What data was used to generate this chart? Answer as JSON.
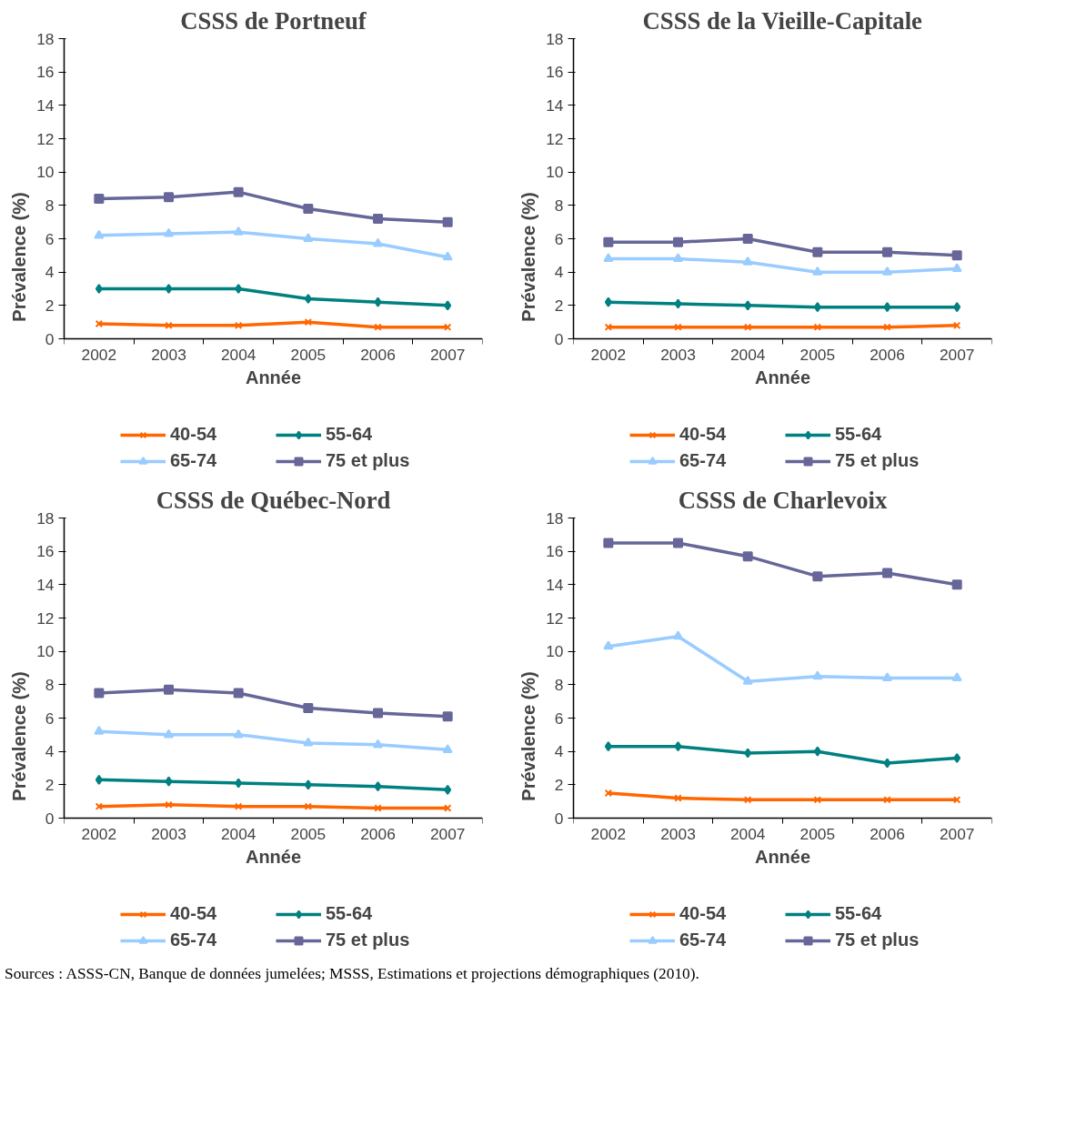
{
  "chart_data": [
    {
      "type": "line",
      "title": "CSSS de Portneuf",
      "xlabel": "Année",
      "ylabel": "Prévalence (%)",
      "categories": [
        "2002",
        "2003",
        "2004",
        "2005",
        "2006",
        "2007"
      ],
      "ylim": [
        0,
        18
      ],
      "yticks": [
        0,
        2,
        4,
        6,
        8,
        10,
        12,
        14,
        16,
        18
      ],
      "grid": false,
      "legend": "bottom",
      "series": [
        {
          "name": "40-54",
          "color": "#ff6600",
          "marker": "cross",
          "values": [
            0.9,
            0.8,
            0.8,
            1.0,
            0.7,
            0.7
          ]
        },
        {
          "name": "55-64",
          "color": "#008080",
          "marker": "diamond",
          "values": [
            3.0,
            3.0,
            3.0,
            2.4,
            2.2,
            2.0
          ]
        },
        {
          "name": "65-74",
          "color": "#99ccff",
          "marker": "triangle",
          "values": [
            6.2,
            6.3,
            6.4,
            6.0,
            5.7,
            4.9
          ]
        },
        {
          "name": "75 et plus",
          "color": "#666699",
          "marker": "square",
          "values": [
            8.4,
            8.5,
            8.8,
            7.8,
            7.2,
            7.0
          ]
        }
      ]
    },
    {
      "type": "line",
      "title": "CSSS de la Vieille-Capitale",
      "xlabel": "Année",
      "ylabel": "Prévalence (%)",
      "categories": [
        "2002",
        "2003",
        "2004",
        "2005",
        "2006",
        "2007"
      ],
      "ylim": [
        0,
        18
      ],
      "yticks": [
        0,
        2,
        4,
        6,
        8,
        10,
        12,
        14,
        16,
        18
      ],
      "grid": false,
      "legend": "bottom",
      "series": [
        {
          "name": "40-54",
          "color": "#ff6600",
          "marker": "cross",
          "values": [
            0.7,
            0.7,
            0.7,
            0.7,
            0.7,
            0.8
          ]
        },
        {
          "name": "55-64",
          "color": "#008080",
          "marker": "diamond",
          "values": [
            2.2,
            2.1,
            2.0,
            1.9,
            1.9,
            1.9
          ]
        },
        {
          "name": "65-74",
          "color": "#99ccff",
          "marker": "triangle",
          "values": [
            4.8,
            4.8,
            4.6,
            4.0,
            4.0,
            4.2
          ]
        },
        {
          "name": "75 et plus",
          "color": "#666699",
          "marker": "square",
          "values": [
            5.8,
            5.8,
            6.0,
            5.2,
            5.2,
            5.0
          ]
        }
      ]
    },
    {
      "type": "line",
      "title": "CSSS de Québec-Nord",
      "xlabel": "Année",
      "ylabel": "Prévalence (%)",
      "categories": [
        "2002",
        "2003",
        "2004",
        "2005",
        "2006",
        "2007"
      ],
      "ylim": [
        0,
        18
      ],
      "yticks": [
        0,
        2,
        4,
        6,
        8,
        10,
        12,
        14,
        16,
        18
      ],
      "grid": false,
      "legend": "bottom",
      "series": [
        {
          "name": "40-54",
          "color": "#ff6600",
          "marker": "cross",
          "values": [
            0.7,
            0.8,
            0.7,
            0.7,
            0.6,
            0.6
          ]
        },
        {
          "name": "55-64",
          "color": "#008080",
          "marker": "diamond",
          "values": [
            2.3,
            2.2,
            2.1,
            2.0,
            1.9,
            1.7
          ]
        },
        {
          "name": "65-74",
          "color": "#99ccff",
          "marker": "triangle",
          "values": [
            5.2,
            5.0,
            5.0,
            4.5,
            4.4,
            4.1
          ]
        },
        {
          "name": "75 et plus",
          "color": "#666699",
          "marker": "square",
          "values": [
            7.5,
            7.7,
            7.5,
            6.6,
            6.3,
            6.1
          ]
        }
      ]
    },
    {
      "type": "line",
      "title": "CSSS de Charlevoix",
      "xlabel": "Année",
      "ylabel": "Prévalence (%)",
      "categories": [
        "2002",
        "2003",
        "2004",
        "2005",
        "2006",
        "2007"
      ],
      "ylim": [
        0,
        18
      ],
      "yticks": [
        0,
        2,
        4,
        6,
        8,
        10,
        12,
        14,
        16,
        18
      ],
      "grid": false,
      "legend": "bottom",
      "annotations": [
        "Sources : ASSS-CN, Banque de données jumelées; MSSS, Estimations et projections démographiques (2010)."
      ],
      "series": [
        {
          "name": "40-54",
          "color": "#ff6600",
          "marker": "cross",
          "values": [
            1.5,
            1.2,
            1.1,
            1.1,
            1.1,
            1.1
          ]
        },
        {
          "name": "55-64",
          "color": "#008080",
          "marker": "diamond",
          "values": [
            4.3,
            4.3,
            3.9,
            4.0,
            3.3,
            3.6
          ]
        },
        {
          "name": "65-74",
          "color": "#99ccff",
          "marker": "triangle",
          "values": [
            10.3,
            10.9,
            8.2,
            8.5,
            8.4,
            8.4
          ]
        },
        {
          "name": "75 et plus",
          "color": "#666699",
          "marker": "square",
          "values": [
            16.5,
            16.5,
            15.7,
            14.5,
            14.7,
            14.0
          ]
        }
      ]
    }
  ]
}
